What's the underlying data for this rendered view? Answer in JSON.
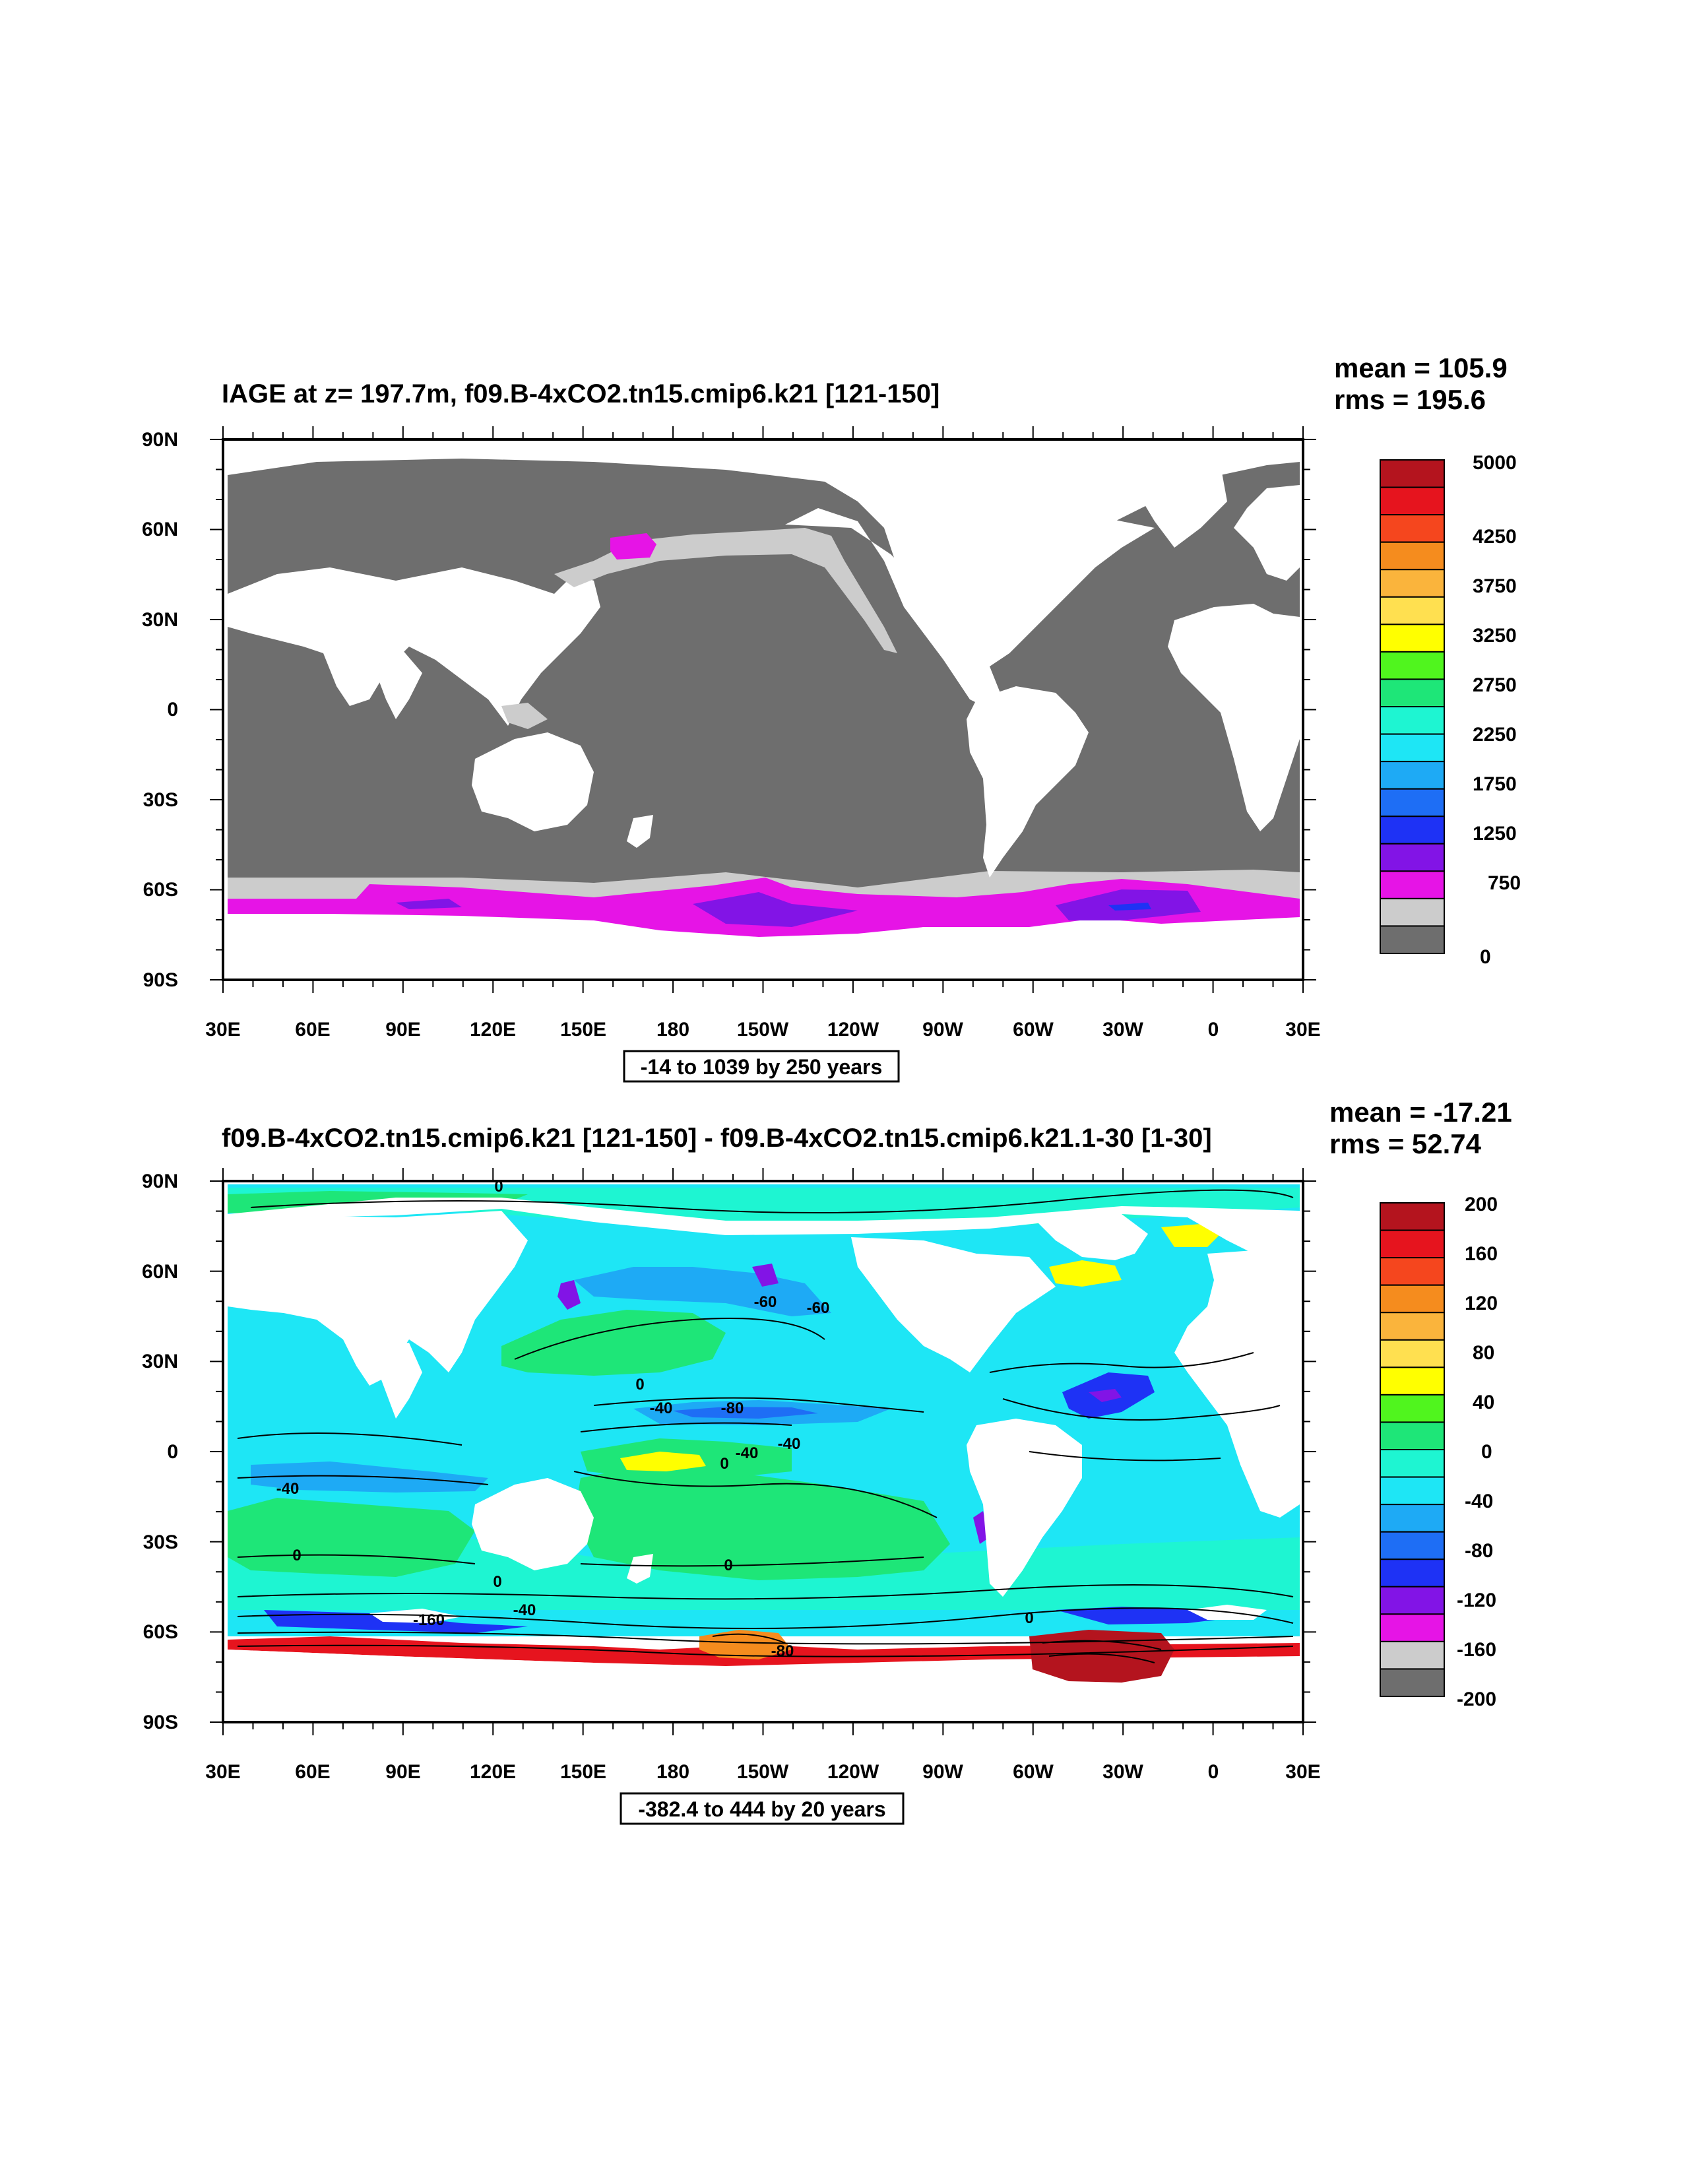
{
  "panels": [
    {
      "title": "IAGE at z= 197.7m, f09.B-4xCO2.tn15.cmip6.k21 [121-150]",
      "mean_label": "mean = 105.9",
      "rms_label": "rms = 195.6",
      "range_label": "-14 to 1039 by 250 years",
      "lat_ticks": [
        "90N",
        "60N",
        "30N",
        "0",
        "30S",
        "60S",
        "90S"
      ],
      "lon_ticks": [
        "30E",
        "60E",
        "90E",
        "120E",
        "150E",
        "180",
        "150W",
        "120W",
        "90W",
        "60W",
        "30W",
        "0",
        "30E"
      ],
      "colorbar": {
        "labels": [
          "5000",
          "4250",
          "3750",
          "3250",
          "2750",
          "2250",
          "1750",
          "1250",
          "750",
          "0"
        ],
        "colors": [
          "#b4141e",
          "#e6141e",
          "#f5461e",
          "#f58c1e",
          "#fab43c",
          "#ffe050",
          "#ffff00",
          "#50f51e",
          "#1ee678",
          "#1ef5d2",
          "#1ee6f5",
          "#1eaaf5",
          "#1e6ef5",
          "#1e32f5",
          "#8214e6",
          "#e614e6",
          "#cccccc",
          "#6e6e6e"
        ]
      },
      "features": {
        "ocean_color": "#6e6e6e",
        "shelf_color": "#cccccc",
        "accent_color": "#e614e6",
        "deep_color": "#8214e6"
      }
    },
    {
      "title": "f09.B-4xCO2.tn15.cmip6.k21 [121-150] - f09.B-4xCO2.tn15.cmip6.k21.1-30 [1-30]",
      "mean_label": "mean = -17.21",
      "rms_label": "rms = 52.74",
      "range_label": "-382.4 to 444 by 20 years",
      "lat_ticks": [
        "90N",
        "60N",
        "30N",
        "0",
        "30S",
        "60S",
        "90S"
      ],
      "lon_ticks": [
        "30E",
        "60E",
        "90E",
        "120E",
        "150E",
        "180",
        "150W",
        "120W",
        "90W",
        "60W",
        "30W",
        "0",
        "30E"
      ],
      "colorbar": {
        "labels": [
          "200",
          "160",
          "120",
          "80",
          "40",
          "0",
          "-40",
          "-80",
          "-120",
          "-160",
          "-200"
        ],
        "colors": [
          "#b4141e",
          "#e6141e",
          "#f5461e",
          "#f58c1e",
          "#fab43c",
          "#ffe050",
          "#ffff00",
          "#50f51e",
          "#1ee678",
          "#1ef5d2",
          "#1ee6f5",
          "#1eaaf5",
          "#1e6ef5",
          "#1e32f5",
          "#8214e6",
          "#e614e6",
          "#cccccc",
          "#6e6e6e"
        ]
      },
      "contour_labels": [
        "0",
        "0",
        "0",
        "0",
        "0",
        "0",
        "-40",
        "-80",
        "-40",
        "-40",
        "-40",
        "-60",
        "-40",
        "-160",
        "-80",
        "0",
        "-60"
      ],
      "features": {
        "base_color": "#1ee6f5",
        "teal_color": "#1ef5d2",
        "green_color": "#1ee678",
        "yellow_color": "#ffff00",
        "red_color": "#b4141e",
        "blue_color": "#1e6ef5"
      }
    }
  ]
}
